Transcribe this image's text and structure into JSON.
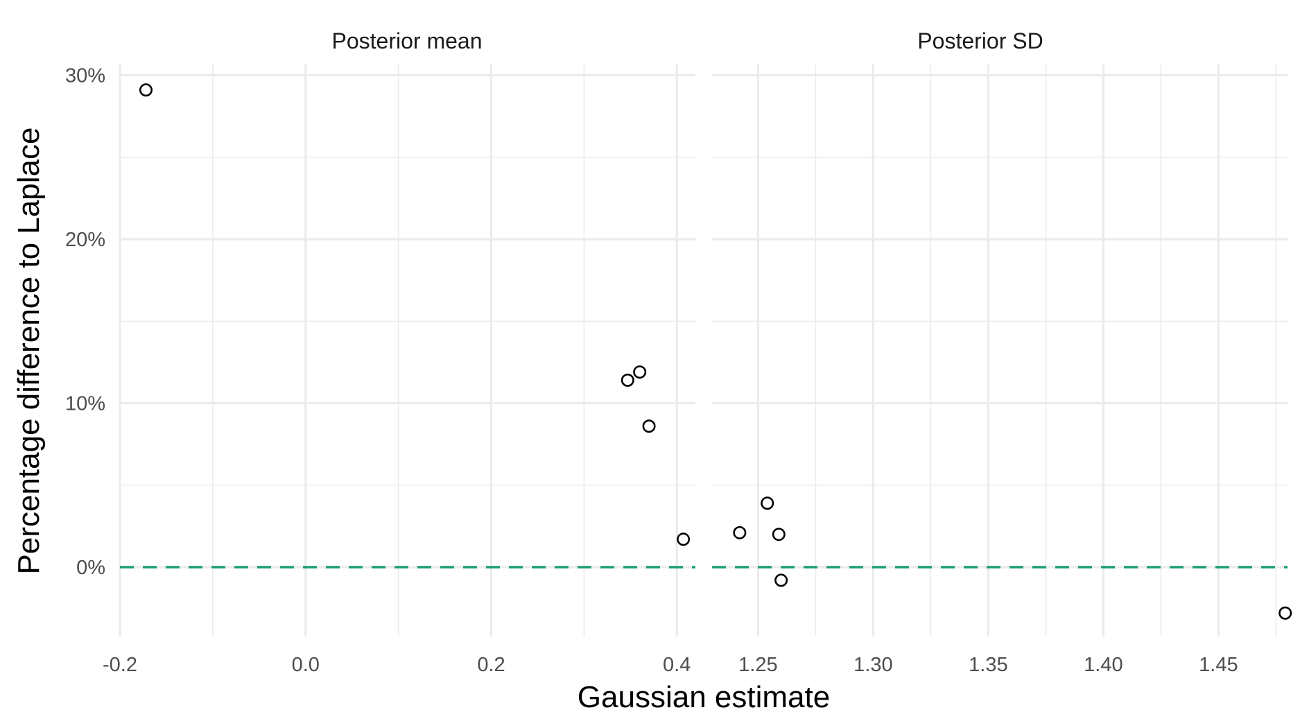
{
  "chart_data": {
    "type": "scatter",
    "xlabel": "Gaussian estimate",
    "ylabel": "Percentage difference to Laplace",
    "y_ticks": [
      0,
      10,
      20,
      30
    ],
    "y_tick_labels": [
      "0%",
      "10%",
      "20%",
      "30%"
    ],
    "ylim": [
      -4.2,
      30.7
    ],
    "reference_line": {
      "y": 0,
      "style": "dashed",
      "color": "#1b9e77"
    },
    "grid": true,
    "legend": "none",
    "point_style": "open-circle",
    "point_color": "#000000",
    "panels": [
      {
        "title": "Posterior mean",
        "xlim": [
          -0.2,
          0.42
        ],
        "x_ticks": [
          -0.2,
          0.0,
          0.2,
          0.4
        ],
        "x_tick_labels": [
          "-0.2",
          "0.0",
          "0.2",
          "0.4"
        ],
        "points": [
          {
            "x": -0.172,
            "y": 29.1
          },
          {
            "x": 0.347,
            "y": 11.4
          },
          {
            "x": 0.36,
            "y": 11.9
          },
          {
            "x": 0.37,
            "y": 8.6
          },
          {
            "x": 0.407,
            "y": 1.7
          }
        ]
      },
      {
        "title": "Posterior SD",
        "xlim": [
          1.23,
          1.48
        ],
        "x_ticks": [
          1.25,
          1.3,
          1.35,
          1.4,
          1.45
        ],
        "x_tick_labels": [
          "1.25",
          "1.30",
          "1.35",
          "1.40",
          "1.45"
        ],
        "points": [
          {
            "x": 1.242,
            "y": 2.1
          },
          {
            "x": 1.254,
            "y": 3.9
          },
          {
            "x": 1.259,
            "y": 2.0
          },
          {
            "x": 1.26,
            "y": -0.8
          },
          {
            "x": 1.479,
            "y": -2.8
          }
        ]
      }
    ]
  }
}
